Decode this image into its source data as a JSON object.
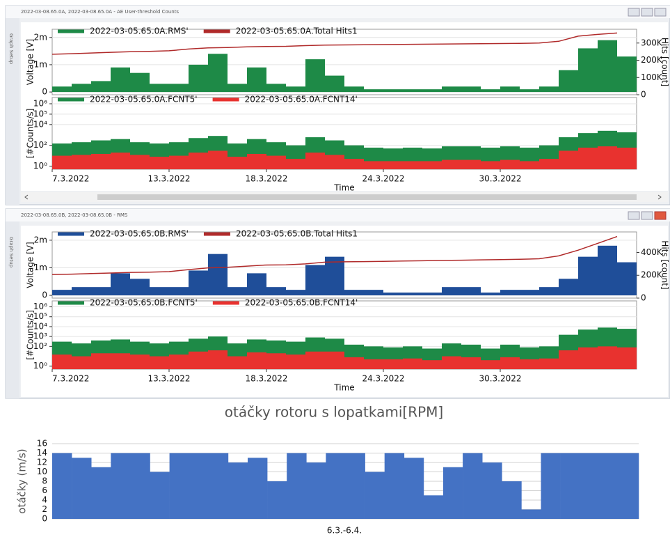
{
  "windows": [
    {
      "title": "2022-03-08.65.0A, 2022-03-08.65.0A - AE User-threshold Counts",
      "side_tab": "Graph Setup"
    },
    {
      "title": "2022-03-08.65.0B, 2022-03-08.65.0B - RMS",
      "side_tab": "Graph Setup"
    }
  ],
  "chart_data": [
    {
      "type": "bar",
      "grid": true,
      "ylabel": "Voltage [V]",
      "y2label": "Hits [count]",
      "x": [
        "2022-03-07",
        "2022-03-08",
        "2022-03-09",
        "2022-03-10",
        "2022-03-11",
        "2022-03-12",
        "2022-03-13",
        "2022-03-14",
        "2022-03-15",
        "2022-03-16",
        "2022-03-17",
        "2022-03-18",
        "2022-03-19",
        "2022-03-20",
        "2022-03-21",
        "2022-03-22",
        "2022-03-23",
        "2022-03-24",
        "2022-03-25",
        "2022-03-26",
        "2022-03-27",
        "2022-03-28",
        "2022-03-29",
        "2022-03-30",
        "2022-03-31",
        "2022-04-01",
        "2022-04-02",
        "2022-04-03",
        "2022-04-04",
        "2022-04-05"
      ],
      "xlim": [
        "2022-03-07",
        "2022-04-06"
      ],
      "ylim": [
        -0.0001,
        0.0023
      ],
      "yticks": [
        0,
        {
          "value": 0.001,
          "label": "1m"
        },
        {
          "value": 0.002,
          "label": "2m"
        }
      ],
      "y2lim": [
        0,
        380000
      ],
      "y2ticks": [
        0,
        {
          "value": 100000,
          "label": "100K"
        },
        {
          "value": 200000,
          "label": "200K"
        },
        {
          "value": 300000,
          "label": "300K"
        }
      ],
      "series": [
        {
          "name": "2022-03-05.65.0A.RMS'",
          "color": "#1e8a47",
          "type": "bar",
          "values": [
            0.0002,
            0.0003,
            0.0004,
            0.0009,
            0.0007,
            0.0003,
            0.0003,
            0.001,
            0.0014,
            0.0003,
            0.0009,
            0.0003,
            0.0002,
            0.0012,
            0.0006,
            0.0002,
            0.0001,
            0.0001,
            0.0001,
            0.0001,
            0.0002,
            0.0002,
            0.0001,
            0.0002,
            0.0001,
            0.0002,
            0.0008,
            0.0016,
            0.0019,
            0.0013
          ]
        },
        {
          "name": "2022-03-05.65.0A.Total Hits1",
          "color": "#b02a2a",
          "type": "line",
          "axis": "y2",
          "values": [
            235000,
            238000,
            242000,
            246000,
            250000,
            252000,
            255000,
            265000,
            272000,
            274000,
            278000,
            280000,
            281000,
            285000,
            288000,
            289000,
            290000,
            291000,
            292000,
            293000,
            294000,
            295000,
            296000,
            297000,
            298000,
            300000,
            310000,
            340000,
            350000,
            358000
          ]
        }
      ]
    },
    {
      "type": "bar",
      "grid": true,
      "log": true,
      "ylabel": "[#Counts/s]",
      "xlabel": "Time",
      "x": [
        "2022-03-07",
        "2022-03-08",
        "2022-03-09",
        "2022-03-10",
        "2022-03-11",
        "2022-03-12",
        "2022-03-13",
        "2022-03-14",
        "2022-03-15",
        "2022-03-16",
        "2022-03-17",
        "2022-03-18",
        "2022-03-19",
        "2022-03-20",
        "2022-03-21",
        "2022-03-22",
        "2022-03-23",
        "2022-03-24",
        "2022-03-25",
        "2022-03-26",
        "2022-03-27",
        "2022-03-28",
        "2022-03-29",
        "2022-03-30",
        "2022-03-31",
        "2022-04-01",
        "2022-04-02",
        "2022-04-03",
        "2022-04-04",
        "2022-04-05"
      ],
      "xlim": [
        "2022-03-07",
        "2022-04-06"
      ],
      "xticks": [
        {
          "value": "2022-03-07",
          "label": "7.3.2022"
        },
        {
          "value": "2022-03-13",
          "label": "13.3.2022"
        },
        {
          "value": "2022-03-18",
          "label": "18.3.2022"
        },
        {
          "value": "2022-03-24",
          "label": "24.3.2022"
        },
        {
          "value": "2022-03-30",
          "label": "30.3.2022"
        }
      ],
      "ylim": [
        0.5,
        4000000
      ],
      "yticks": [
        {
          "value": 1,
          "label": "10⁰"
        },
        {
          "value": 100,
          "label": "10²"
        },
        {
          "value": 10000,
          "label": "10⁴"
        },
        {
          "value": 100000,
          "label": "10⁵"
        },
        {
          "value": 1000000,
          "label": "10⁶"
        }
      ],
      "series": [
        {
          "name": "2022-03-05.65.0A.FCNT5'",
          "color": "#1e8a47",
          "type": "bar",
          "values": [
            150,
            200,
            300,
            400,
            200,
            150,
            200,
            500,
            800,
            150,
            400,
            200,
            100,
            600,
            300,
            100,
            60,
            50,
            60,
            50,
            80,
            80,
            60,
            80,
            60,
            100,
            600,
            1500,
            2500,
            1800
          ]
        },
        {
          "name": "2022-03-05.65.0A.FCNT14'",
          "color": "#e8322f",
          "type": "bar",
          "values": [
            10,
            12,
            15,
            20,
            12,
            8,
            10,
            20,
            30,
            8,
            15,
            10,
            5,
            20,
            12,
            5,
            3,
            3,
            3,
            3,
            4,
            4,
            3,
            4,
            3,
            5,
            30,
            60,
            80,
            60
          ]
        }
      ]
    },
    {
      "type": "bar",
      "grid": true,
      "ylabel": "Voltage [V]",
      "y2label": "Hits [count]",
      "x": [
        "2022-03-07",
        "2022-03-08",
        "2022-03-09",
        "2022-03-10",
        "2022-03-11",
        "2022-03-12",
        "2022-03-13",
        "2022-03-14",
        "2022-03-15",
        "2022-03-16",
        "2022-03-17",
        "2022-03-18",
        "2022-03-19",
        "2022-03-20",
        "2022-03-21",
        "2022-03-22",
        "2022-03-23",
        "2022-03-24",
        "2022-03-25",
        "2022-03-26",
        "2022-03-27",
        "2022-03-28",
        "2022-03-29",
        "2022-03-30",
        "2022-03-31",
        "2022-04-01",
        "2022-04-02",
        "2022-04-03",
        "2022-04-04",
        "2022-04-05"
      ],
      "xlim": [
        "2022-03-07",
        "2022-04-06"
      ],
      "ylim": [
        -0.0001,
        0.0023
      ],
      "yticks": [
        0,
        {
          "value": 0.001,
          "label": "1m"
        },
        {
          "value": 0.002,
          "label": "2m"
        }
      ],
      "y2lim": [
        0,
        580000
      ],
      "y2ticks": [
        0,
        {
          "value": 200000,
          "label": "200K"
        },
        {
          "value": 400000,
          "label": "400K"
        }
      ],
      "series": [
        {
          "name": "2022-03-05.65.0B.RMS'",
          "color": "#1f4e99",
          "type": "bar",
          "values": [
            0.0002,
            0.0003,
            0.0003,
            0.0008,
            0.0006,
            0.0003,
            0.0003,
            0.0009,
            0.0015,
            0.0003,
            0.0008,
            0.0003,
            0.0002,
            0.0011,
            0.0014,
            0.0002,
            0.0002,
            0.0001,
            0.0001,
            0.0001,
            0.0003,
            0.0003,
            0.0001,
            0.0002,
            0.0002,
            0.0003,
            0.0006,
            0.0014,
            0.0018,
            0.0012
          ]
        },
        {
          "name": "2022-03-05.65.0B.Total Hits1",
          "color": "#b02a2a",
          "type": "line",
          "axis": "y2",
          "values": [
            207000,
            210000,
            215000,
            220000,
            225000,
            228000,
            232000,
            250000,
            265000,
            270000,
            280000,
            290000,
            292000,
            300000,
            315000,
            318000,
            320000,
            322000,
            325000,
            327000,
            330000,
            332000,
            335000,
            337000,
            340000,
            345000,
            370000,
            420000,
            480000,
            540000
          ]
        }
      ]
    },
    {
      "type": "bar",
      "grid": true,
      "log": true,
      "ylabel": "[#Counts/s]",
      "xlabel": "Time",
      "x": [
        "2022-03-07",
        "2022-03-08",
        "2022-03-09",
        "2022-03-10",
        "2022-03-11",
        "2022-03-12",
        "2022-03-13",
        "2022-03-14",
        "2022-03-15",
        "2022-03-16",
        "2022-03-17",
        "2022-03-18",
        "2022-03-19",
        "2022-03-20",
        "2022-03-21",
        "2022-03-22",
        "2022-03-23",
        "2022-03-24",
        "2022-03-25",
        "2022-03-26",
        "2022-03-27",
        "2022-03-28",
        "2022-03-29",
        "2022-03-30",
        "2022-03-31",
        "2022-04-01",
        "2022-04-02",
        "2022-04-03",
        "2022-04-04",
        "2022-04-05"
      ],
      "xlim": [
        "2022-03-07",
        "2022-04-06"
      ],
      "xticks": [
        {
          "value": "2022-03-07",
          "label": "7.3.2022"
        },
        {
          "value": "2022-03-13",
          "label": "13.3.2022"
        },
        {
          "value": "2022-03-18",
          "label": "18.3.2022"
        },
        {
          "value": "2022-03-24",
          "label": "24.3.2022"
        },
        {
          "value": "2022-03-30",
          "label": "30.3.2022"
        }
      ],
      "ylim": [
        0.5,
        4000000
      ],
      "yticks": [
        {
          "value": 1,
          "label": "10⁰"
        },
        {
          "value": 100,
          "label": "10²"
        },
        {
          "value": 1000,
          "label": "10³"
        },
        {
          "value": 10000,
          "label": "10⁴"
        },
        {
          "value": 100000,
          "label": "10⁵"
        },
        {
          "value": 1000000,
          "label": "10⁶"
        }
      ],
      "series": [
        {
          "name": "2022-03-05.65.0B.FCNT5'",
          "color": "#1e8a47",
          "type": "bar",
          "values": [
            300,
            200,
            400,
            500,
            300,
            200,
            300,
            600,
            1000,
            200,
            500,
            400,
            300,
            800,
            600,
            150,
            100,
            80,
            100,
            60,
            200,
            150,
            60,
            150,
            80,
            100,
            1500,
            5000,
            8000,
            6000
          ]
        },
        {
          "name": "2022-03-05.65.0B.FCNT14'",
          "color": "#e8322f",
          "type": "bar",
          "values": [
            15,
            10,
            20,
            20,
            15,
            10,
            15,
            30,
            40,
            10,
            25,
            20,
            15,
            30,
            30,
            8,
            5,
            5,
            6,
            4,
            10,
            8,
            4,
            8,
            5,
            6,
            40,
            80,
            100,
            80
          ]
        }
      ]
    },
    {
      "type": "bar",
      "grid": true,
      "title": "otáčky rotoru s lopatkami[RPM]",
      "ylabel": "otáčky (m/s)",
      "xlabel": "6.3.-6.4.",
      "color": "#4472c4",
      "ylim": [
        0,
        16
      ],
      "yticks": [
        0,
        2,
        4,
        6,
        8,
        10,
        12,
        14,
        16
      ],
      "values": [
        14,
        13,
        11,
        14,
        14,
        10,
        14,
        14,
        14,
        12,
        13,
        8,
        14,
        12,
        14,
        14,
        10,
        14,
        13,
        5,
        11,
        14,
        12,
        8,
        2,
        14,
        14,
        14,
        14,
        14
      ]
    }
  ]
}
